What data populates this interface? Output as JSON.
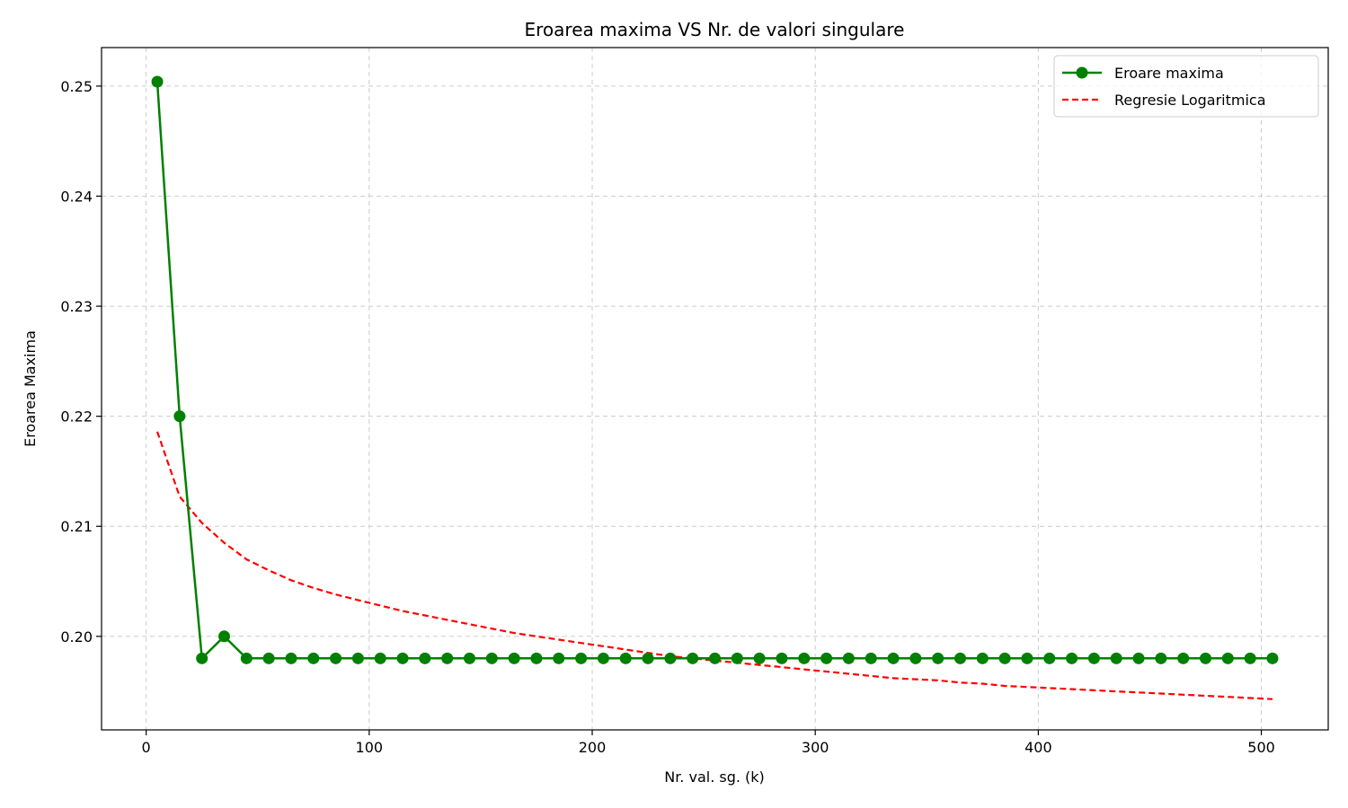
{
  "chart_data": {
    "type": "line",
    "title": "Eroarea maxima VS Nr. de valori singulare",
    "xlabel": "Nr. val. sg. (k)",
    "ylabel": "Eroarea Maxima",
    "xlim": [
      -20,
      530
    ],
    "ylim": [
      0.1915,
      0.2535
    ],
    "xticks": [
      0,
      100,
      200,
      300,
      400,
      500
    ],
    "yticks": [
      0.2,
      0.21,
      0.22,
      0.23,
      0.24,
      0.25
    ],
    "ytick_labels": [
      "0.20",
      "0.21",
      "0.22",
      "0.23",
      "0.24",
      "0.25"
    ],
    "grid": true,
    "legend_position": "top-right",
    "series": [
      {
        "name": "Eroare maxima",
        "color": "#008000",
        "style": "solid-markers",
        "x": [
          5,
          15,
          25,
          35,
          45,
          55,
          65,
          75,
          85,
          95,
          105,
          115,
          125,
          135,
          145,
          155,
          165,
          175,
          185,
          195,
          205,
          215,
          225,
          235,
          245,
          255,
          265,
          275,
          285,
          295,
          305,
          315,
          325,
          335,
          345,
          355,
          365,
          375,
          385,
          395,
          405,
          415,
          425,
          435,
          445,
          455,
          465,
          475,
          485,
          495,
          505
        ],
        "y": [
          0.2504,
          0.22,
          0.198,
          0.2,
          0.198,
          0.198,
          0.198,
          0.198,
          0.198,
          0.198,
          0.198,
          0.198,
          0.198,
          0.198,
          0.198,
          0.198,
          0.198,
          0.198,
          0.198,
          0.198,
          0.198,
          0.198,
          0.198,
          0.198,
          0.198,
          0.198,
          0.198,
          0.198,
          0.198,
          0.198,
          0.198,
          0.198,
          0.198,
          0.198,
          0.198,
          0.198,
          0.198,
          0.198,
          0.198,
          0.198,
          0.198,
          0.198,
          0.198,
          0.198,
          0.198,
          0.198,
          0.198,
          0.198,
          0.198,
          0.198,
          0.198
        ]
      },
      {
        "name": "Regresie Logaritmica",
        "color": "#ff0000",
        "style": "dashed",
        "x": [
          5,
          15,
          25,
          35,
          45,
          55,
          65,
          75,
          85,
          95,
          105,
          115,
          125,
          135,
          145,
          155,
          165,
          175,
          185,
          195,
          205,
          215,
          225,
          235,
          245,
          255,
          265,
          275,
          285,
          295,
          305,
          315,
          325,
          335,
          345,
          355,
          365,
          375,
          385,
          395,
          405,
          415,
          425,
          435,
          445,
          455,
          465,
          475,
          485,
          495,
          505
        ],
        "y": [
          0.2186,
          0.2127,
          0.2103,
          0.2085,
          0.207,
          0.206,
          0.2051,
          0.2044,
          0.2038,
          0.2033,
          0.2028,
          0.2023,
          0.2019,
          0.2015,
          0.2011,
          0.2007,
          0.2003,
          0.2,
          0.1997,
          0.1994,
          0.1991,
          0.1988,
          0.1985,
          0.1982,
          0.198,
          0.1978,
          0.1976,
          0.1974,
          0.1972,
          0.197,
          0.1968,
          0.1966,
          0.1964,
          0.1962,
          0.1961,
          0.196,
          0.1958,
          0.1957,
          0.1955,
          0.1954,
          0.1953,
          0.1952,
          0.1951,
          0.195,
          0.1949,
          0.1948,
          0.1947,
          0.1946,
          0.1945,
          0.1944,
          0.1943
        ]
      }
    ]
  }
}
